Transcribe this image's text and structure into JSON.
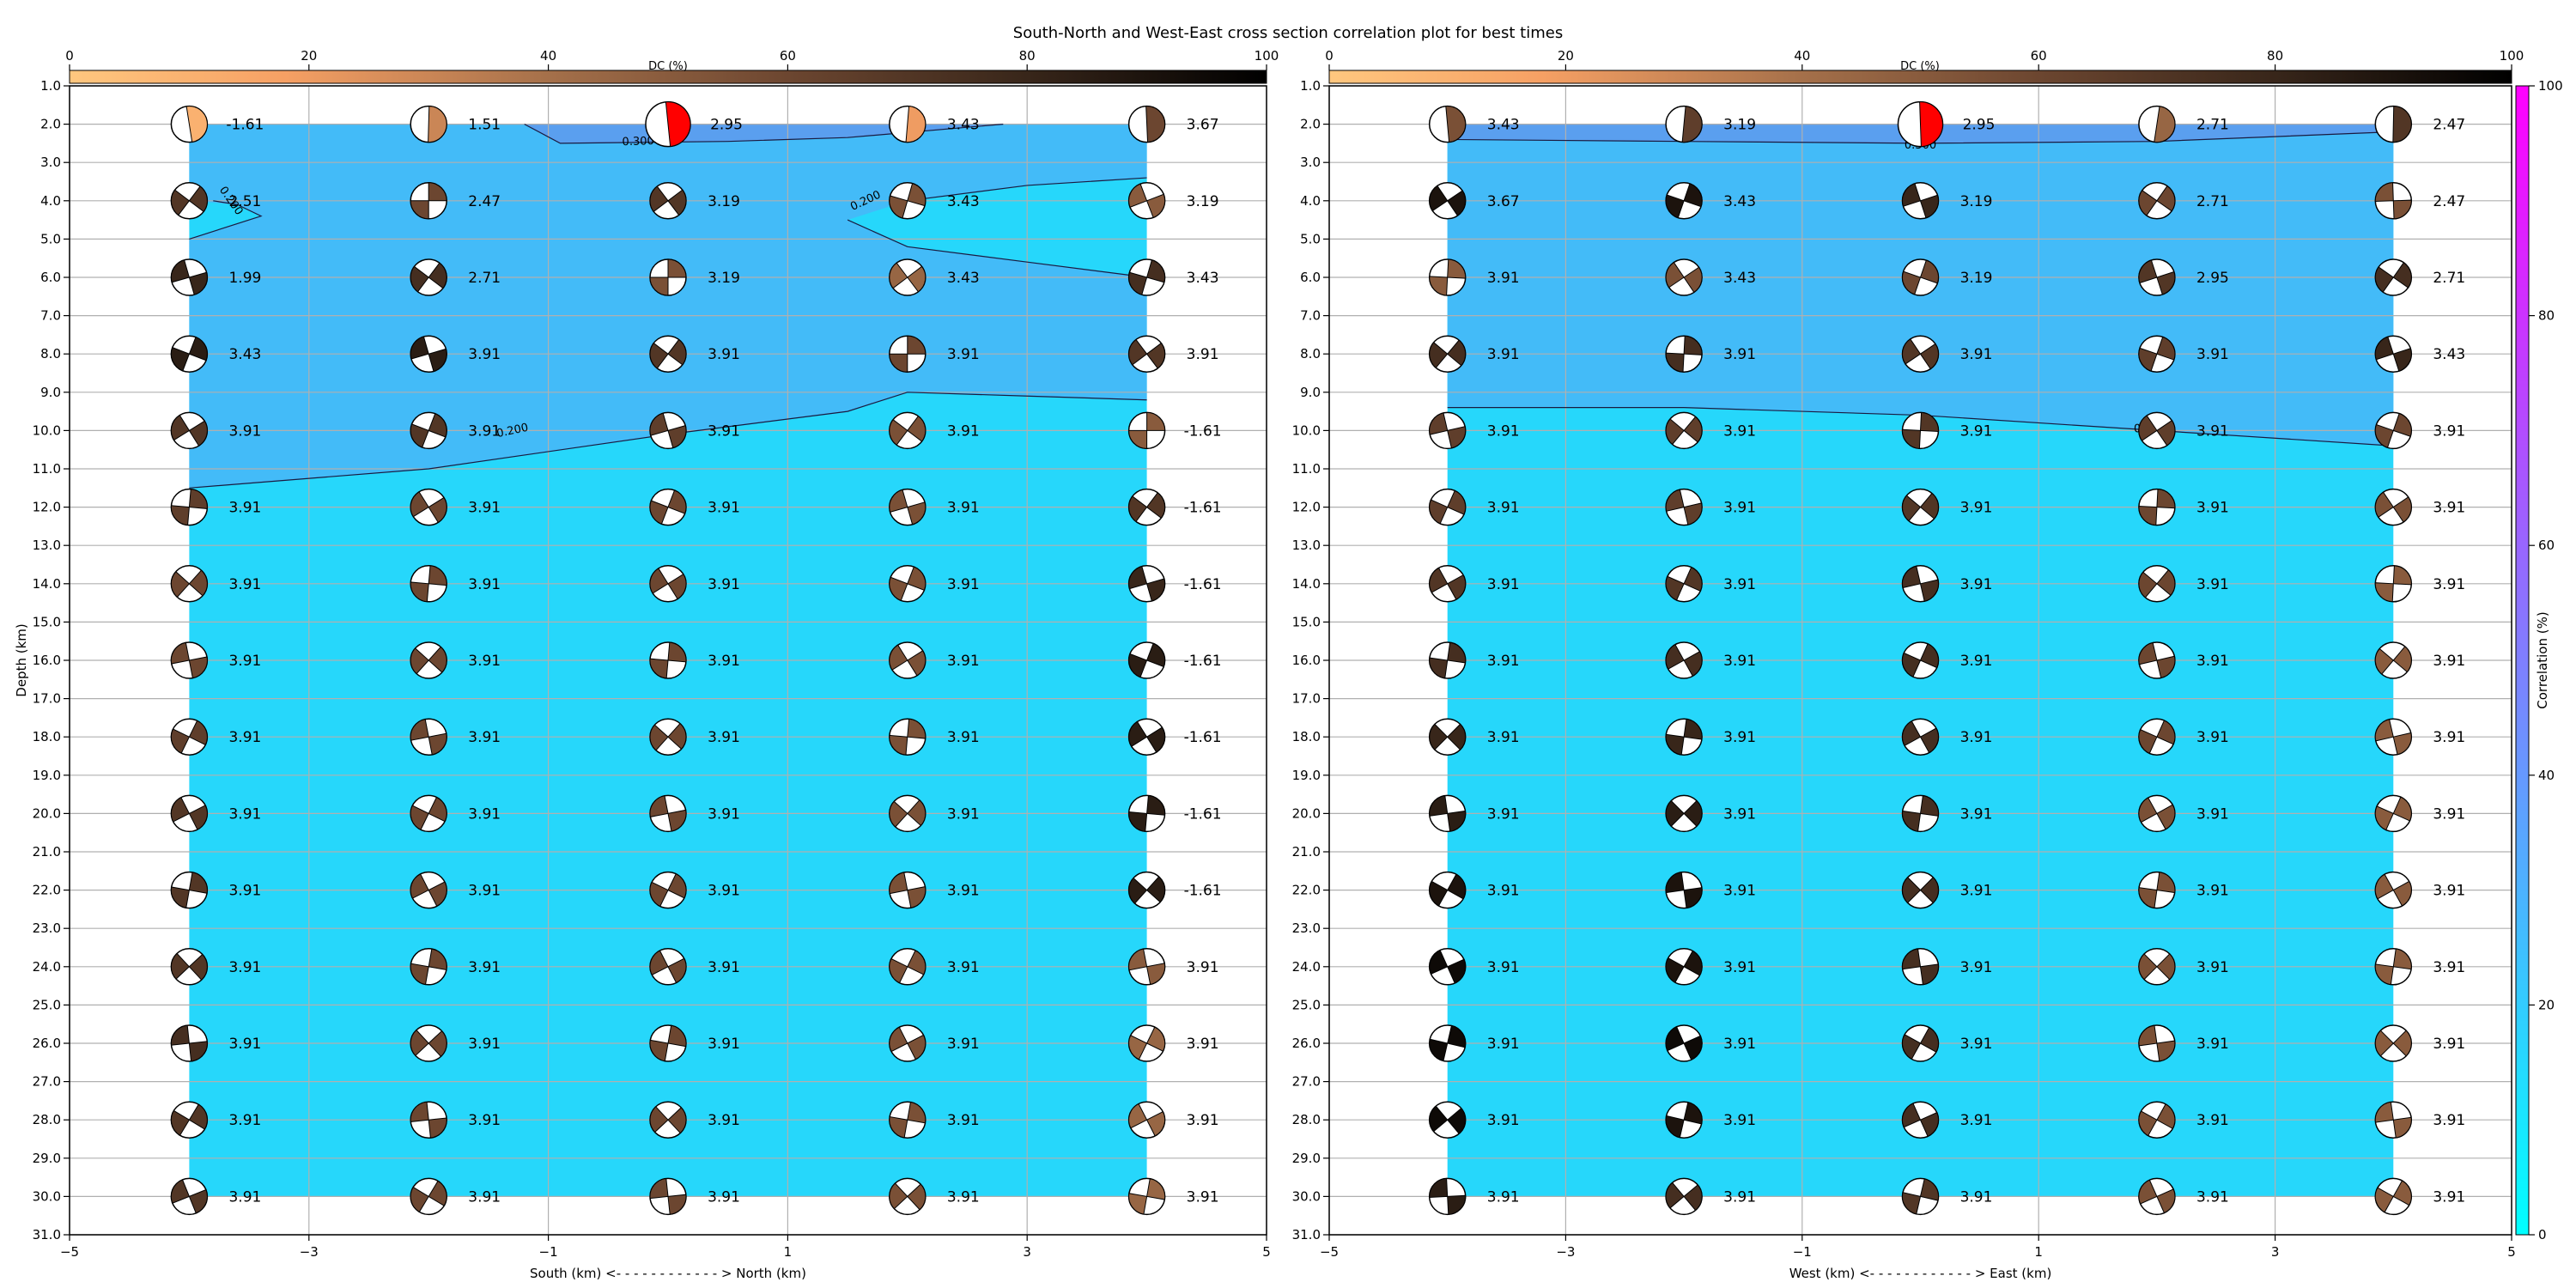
{
  "title": "South-North and West-East cross section correlation plot for best times",
  "colors": {
    "band_high": "#5a9fef",
    "band_mid": "#43bbf8",
    "band_low": "#26d7fb",
    "best_fill": "#ff0000",
    "grid": "#b0b0b0"
  },
  "chart_data": [
    {
      "type": "heatmap",
      "name": "south-north",
      "xlabel": "South (km) <- - - - - - - - - - - - > North (km)",
      "ylabel": "Depth (km)",
      "xlim": [
        -5,
        5
      ],
      "ylim": [
        31,
        1
      ],
      "x_ticks": [
        "−5",
        "−3",
        "−1",
        "1",
        "3",
        "5"
      ],
      "y_ticks": [
        "1.0",
        "2.0",
        "3.0",
        "4.0",
        "5.0",
        "6.0",
        "7.0",
        "8.0",
        "9.0",
        "10.0",
        "11.0",
        "12.0",
        "13.0",
        "14.0",
        "15.0",
        "16.0",
        "17.0",
        "18.0",
        "19.0",
        "20.0",
        "21.0",
        "22.0",
        "23.0",
        "24.0",
        "25.0",
        "26.0",
        "27.0",
        "28.0",
        "29.0",
        "30.0",
        "31.0"
      ],
      "grid": true,
      "x": [
        -4,
        -2,
        0,
        2,
        4
      ],
      "depths": [
        2,
        4,
        6,
        8,
        10,
        12,
        14,
        16,
        18,
        20,
        22,
        24,
        26,
        28,
        30
      ],
      "values": [
        [
          "-1.61",
          "1.51",
          "2.95",
          "3.43",
          "3.67"
        ],
        [
          "2.51",
          "2.47",
          "3.19",
          "3.43",
          "3.19"
        ],
        [
          "1.99",
          "2.71",
          "3.19",
          "3.43",
          "3.43"
        ],
        [
          "3.43",
          "3.91",
          "3.91",
          "3.91",
          "3.91"
        ],
        [
          "3.91",
          "3.91",
          "3.91",
          "3.91",
          "-1.61"
        ],
        [
          "3.91",
          "3.91",
          "3.91",
          "3.91",
          "-1.61"
        ],
        [
          "3.91",
          "3.91",
          "3.91",
          "3.91",
          "-1.61"
        ],
        [
          "3.91",
          "3.91",
          "3.91",
          "3.91",
          "-1.61"
        ],
        [
          "3.91",
          "3.91",
          "3.91",
          "3.91",
          "-1.61"
        ],
        [
          "3.91",
          "3.91",
          "3.91",
          "3.91",
          "-1.61"
        ],
        [
          "3.91",
          "3.91",
          "3.91",
          "3.91",
          "-1.61"
        ],
        [
          "3.91",
          "3.91",
          "3.91",
          "3.91",
          "3.91"
        ],
        [
          "3.91",
          "3.91",
          "3.91",
          "3.91",
          "3.91"
        ],
        [
          "3.91",
          "3.91",
          "3.91",
          "3.91",
          "3.91"
        ],
        [
          "3.91",
          "3.91",
          "3.91",
          "3.91",
          "3.91"
        ]
      ],
      "dc_percent": [
        [
          10,
          30,
          0,
          20,
          60
        ],
        [
          70,
          60,
          70,
          55,
          50
        ],
        [
          80,
          75,
          55,
          45,
          75
        ],
        [
          85,
          85,
          70,
          60,
          70
        ],
        [
          70,
          70,
          65,
          55,
          50
        ],
        [
          65,
          60,
          60,
          55,
          70
        ],
        [
          60,
          60,
          60,
          55,
          80
        ],
        [
          60,
          60,
          60,
          55,
          85
        ],
        [
          65,
          60,
          60,
          55,
          85
        ],
        [
          70,
          60,
          60,
          55,
          85
        ],
        [
          70,
          60,
          60,
          55,
          85
        ],
        [
          70,
          60,
          60,
          55,
          50
        ],
        [
          75,
          60,
          60,
          55,
          45
        ],
        [
          70,
          60,
          60,
          55,
          45
        ],
        [
          70,
          60,
          60,
          55,
          45
        ]
      ],
      "best": {
        "x": 0,
        "depth": 2
      },
      "contours": [
        {
          "label": "0.300",
          "points": [
            [
              -1.2,
              2
            ],
            [
              -0.9,
              2.5
            ],
            [
              0.5,
              2.45
            ],
            [
              1.5,
              2.35
            ],
            [
              2.8,
              2.0
            ]
          ]
        },
        {
          "label": "0.200",
          "points": [
            [
              -4,
              5.0
            ],
            [
              -3.4,
              4.4
            ],
            [
              -3.6,
              4.1
            ],
            [
              -3.8,
              4.0
            ]
          ]
        },
        {
          "label": "0.200",
          "points": [
            [
              1.5,
              4.5
            ],
            [
              2.0,
              5.2
            ],
            [
              3.0,
              5.6
            ],
            [
              4.0,
              6.0
            ]
          ]
        },
        {
          "label": "",
          "points": [
            [
              2.0,
              4.0
            ],
            [
              3.0,
              3.6
            ],
            [
              4.0,
              3.4
            ]
          ]
        },
        {
          "label": "0.200",
          "points": [
            [
              -4,
              11.5
            ],
            [
              -2,
              11.0
            ],
            [
              0,
              10.1
            ],
            [
              1.5,
              9.5
            ],
            [
              2.0,
              9.0
            ],
            [
              3.0,
              9.1
            ],
            [
              4.0,
              9.2
            ]
          ]
        }
      ],
      "contour_labels": [
        {
          "text": "0.300",
          "x": -0.25,
          "depth": 2.45,
          "angle": -2
        },
        {
          "text": "0.200",
          "x": -3.65,
          "depth": 4.0,
          "angle": 55
        },
        {
          "text": "0.200",
          "x": 1.65,
          "depth": 4.0,
          "angle": -25
        },
        {
          "text": "0.200",
          "x": -1.3,
          "depth": 10.0,
          "angle": -12
        }
      ]
    },
    {
      "type": "heatmap",
      "name": "west-east",
      "xlabel": "West (km) <- - - - - - - - - - - - > East (km)",
      "ylabel": "",
      "xlim": [
        -5,
        5
      ],
      "ylim": [
        31,
        1
      ],
      "x_ticks": [
        "−5",
        "−3",
        "−1",
        "1",
        "3",
        "5"
      ],
      "y_ticks": [
        "1.0",
        "2.0",
        "3.0",
        "4.0",
        "5.0",
        "6.0",
        "7.0",
        "8.0",
        "9.0",
        "10.0",
        "11.0",
        "12.0",
        "13.0",
        "14.0",
        "15.0",
        "16.0",
        "17.0",
        "18.0",
        "19.0",
        "20.0",
        "21.0",
        "22.0",
        "23.0",
        "24.0",
        "25.0",
        "26.0",
        "27.0",
        "28.0",
        "29.0",
        "30.0",
        "31.0"
      ],
      "grid": true,
      "x": [
        -4,
        -2,
        0,
        2,
        4
      ],
      "depths": [
        2,
        4,
        6,
        8,
        10,
        12,
        14,
        16,
        18,
        20,
        22,
        24,
        26,
        28,
        30
      ],
      "values": [
        [
          "3.43",
          "3.19",
          "2.95",
          "2.71",
          "2.47"
        ],
        [
          "3.67",
          "3.43",
          "3.19",
          "2.71",
          "2.47"
        ],
        [
          "3.91",
          "3.43",
          "3.19",
          "2.95",
          "2.71"
        ],
        [
          "3.91",
          "3.91",
          "3.91",
          "3.91",
          "3.43"
        ],
        [
          "3.91",
          "3.91",
          "3.91",
          "3.91",
          "3.91"
        ],
        [
          "3.91",
          "3.91",
          "3.91",
          "3.91",
          "3.91"
        ],
        [
          "3.91",
          "3.91",
          "3.91",
          "3.91",
          "3.91"
        ],
        [
          "3.91",
          "3.91",
          "3.91",
          "3.91",
          "3.91"
        ],
        [
          "3.91",
          "3.91",
          "3.91",
          "3.91",
          "3.91"
        ],
        [
          "3.91",
          "3.91",
          "3.91",
          "3.91",
          "3.91"
        ],
        [
          "3.91",
          "3.91",
          "3.91",
          "3.91",
          "3.91"
        ],
        [
          "3.91",
          "3.91",
          "3.91",
          "3.91",
          "3.91"
        ],
        [
          "3.91",
          "3.91",
          "3.91",
          "3.91",
          "3.91"
        ],
        [
          "3.91",
          "3.91",
          "3.91",
          "3.91",
          "3.91"
        ],
        [
          "3.91",
          "3.91",
          "3.91",
          "3.91",
          "3.91"
        ]
      ],
      "dc_percent": [
        [
          55,
          65,
          0,
          45,
          70
        ],
        [
          90,
          90,
          80,
          60,
          55
        ],
        [
          50,
          55,
          60,
          70,
          75
        ],
        [
          75,
          75,
          70,
          65,
          80
        ],
        [
          65,
          65,
          70,
          65,
          60
        ],
        [
          65,
          65,
          70,
          60,
          55
        ],
        [
          70,
          70,
          75,
          60,
          50
        ],
        [
          75,
          75,
          75,
          60,
          50
        ],
        [
          80,
          80,
          75,
          60,
          50
        ],
        [
          85,
          85,
          75,
          55,
          50
        ],
        [
          90,
          90,
          75,
          55,
          50
        ],
        [
          95,
          90,
          75,
          55,
          50
        ],
        [
          95,
          95,
          75,
          55,
          50
        ],
        [
          95,
          90,
          75,
          55,
          50
        ],
        [
          85,
          75,
          70,
          55,
          50
        ]
      ],
      "best": {
        "x": 0,
        "depth": 2
      },
      "contours": [
        {
          "label": "0.300",
          "points": [
            [
              -4,
              2.4
            ],
            [
              -2,
              2.45
            ],
            [
              0,
              2.5
            ],
            [
              2,
              2.45
            ],
            [
              4,
              2.2
            ]
          ]
        },
        {
          "label": "0.200",
          "points": [
            [
              -4,
              9.4
            ],
            [
              -2,
              9.4
            ],
            [
              0,
              9.6
            ],
            [
              2,
              10.0
            ],
            [
              4,
              10.4
            ]
          ]
        }
      ],
      "contour_labels": [
        {
          "text": "0.300",
          "x": 0,
          "depth": 2.55,
          "angle": 0
        },
        {
          "text": "0.",
          "x": 1.85,
          "depth": 9.95,
          "angle": -3
        }
      ]
    }
  ],
  "dc_colorbar": {
    "label": "DC (%)",
    "ticks": [
      "0",
      "20",
      "40",
      "60",
      "80",
      "100"
    ],
    "range": [
      0,
      100
    ]
  },
  "corr_colorbar": {
    "label": "Correlation (%)",
    "ticks": [
      "0",
      "20",
      "40",
      "60",
      "80",
      "100"
    ],
    "range": [
      0,
      100
    ]
  }
}
